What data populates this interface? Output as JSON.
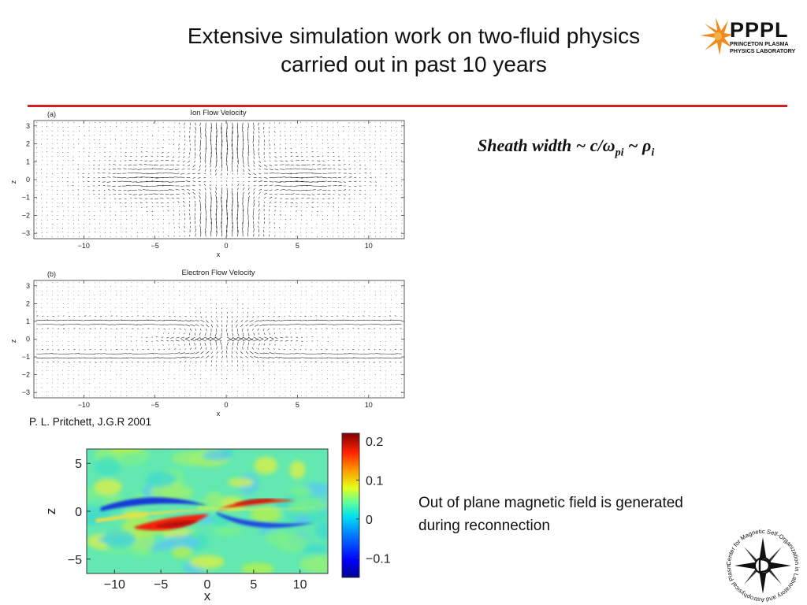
{
  "slide": {
    "title_line1": "Extensive simulation work on two-fluid physics",
    "title_line2": "carried out in past 10 years",
    "sheath_prefix": "Sheath width ~ c/",
    "sheath_omega": "ω",
    "sheath_omega_sub": "pi",
    "sheath_tilde": " ~ ",
    "sheath_rho": "ρ",
    "sheath_rho_sub": "i",
    "citation": "P. L. Pritchett, J.G.R 2001",
    "mag_text": "Out of plane magnetic field is generated during reconnection",
    "accent_color": "#d21e1e"
  },
  "logo": {
    "name": "PPPL",
    "line1": "PRINCETON PLASMA",
    "line2": "PHYSICS LABORATORY"
  },
  "seal": {
    "text": "Center for Magnetic Self-Organization in Laboratory and Astrophysical Plasmas"
  },
  "chart_data": [
    {
      "type": "quiver",
      "panel_label": "(a)",
      "title": "Ion Flow Velocity",
      "xlabel": "x",
      "ylabel": "z",
      "xlim": [
        -13.5,
        12.5
      ],
      "ylim": [
        -3.3,
        3.3
      ],
      "xticks": [
        -10,
        -5,
        0,
        5,
        10
      ],
      "yticks": [
        3,
        2,
        1,
        0,
        -1,
        -2,
        -3
      ],
      "xtick_labels": [
        "−10",
        "−5",
        "0",
        "5",
        "10"
      ],
      "ytick_labels": [
        "3",
        "2",
        "1",
        "0",
        "−1",
        "−2",
        "−3"
      ]
    },
    {
      "type": "quiver",
      "panel_label": "(b)",
      "title": "Electron Flow Velocity",
      "xlabel": "x",
      "ylabel": "z",
      "xlim": [
        -13.5,
        12.5
      ],
      "ylim": [
        -3.3,
        3.3
      ],
      "xticks": [
        -10,
        -5,
        0,
        5,
        10
      ],
      "yticks": [
        3,
        2,
        1,
        0,
        -1,
        -2,
        -3
      ],
      "xtick_labels": [
        "−10",
        "−5",
        "0",
        "5",
        "10"
      ],
      "ytick_labels": [
        "3",
        "2",
        "1",
        "0",
        "−1",
        "−2",
        "−3"
      ]
    },
    {
      "type": "heatmap",
      "xlabel": "x",
      "ylabel": "z",
      "xlim": [
        -13,
        13
      ],
      "ylim": [
        -6.5,
        6.5
      ],
      "xticks": [
        -10,
        -5,
        0,
        5,
        10
      ],
      "yticks": [
        5,
        0,
        -5
      ],
      "xtick_labels": [
        "−10",
        "−5",
        "0",
        "5",
        "10"
      ],
      "ytick_labels": [
        "5",
        "0",
        "−5"
      ],
      "colorbar": {
        "range": [
          -0.15,
          0.22
        ],
        "ticks": [
          0.2,
          0.1,
          0,
          -0.1
        ],
        "tick_labels": [
          "0.2",
          "0.1",
          "0",
          "−0.1"
        ]
      }
    }
  ]
}
